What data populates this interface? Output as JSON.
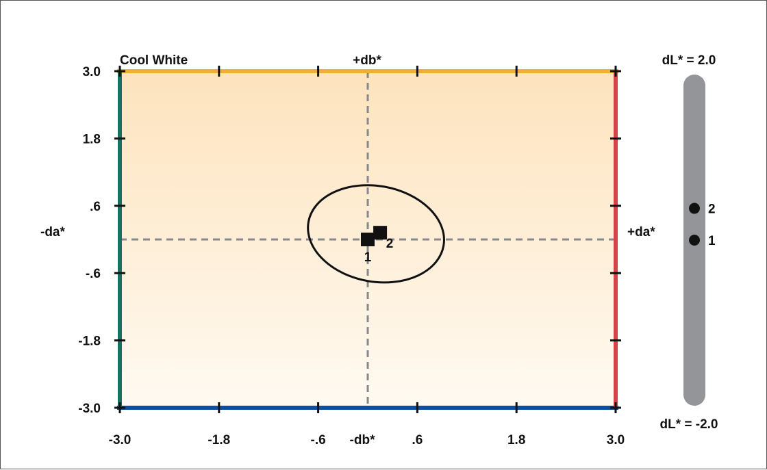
{
  "chart_data": [
    {
      "type": "scatter",
      "title": "Cool White",
      "axis_labels": {
        "top": "+db*",
        "bottom": "-db*",
        "left": "-da*",
        "right": "+da*"
      },
      "xlim": [
        -3.0,
        3.0
      ],
      "ylim": [
        -3.0,
        3.0
      ],
      "x_ticks": [
        "-3.0",
        "-1.8",
        "-.6",
        ".6",
        "1.8",
        "3.0"
      ],
      "y_ticks": [
        "3.0",
        "1.8",
        ".6",
        "-.6",
        "-1.8",
        "-3.0"
      ],
      "tick_values": [
        -3.0,
        -1.8,
        -0.6,
        0.6,
        1.8,
        3.0
      ],
      "points": [
        {
          "label": "1",
          "x": 0.0,
          "y": 0.0
        },
        {
          "label": "2",
          "x": 0.15,
          "y": 0.12
        }
      ],
      "tolerance_ellipse": {
        "center": [
          0.1,
          0.1
        ],
        "semi_major": 0.83,
        "semi_minor": 0.58,
        "rotation_deg": 10
      },
      "grid": false,
      "colors": {
        "top_edge": "#f2ad35",
        "bottom_edge": "#0d4f9e",
        "left_edge": "#16715f",
        "right_edge": "#d9414a",
        "fill_top": "#fde3bd",
        "fill_bottom": "#fffaf2",
        "marker": "#111111",
        "dashed": "#888888"
      }
    },
    {
      "type": "scatter",
      "top_label": "dL* = 2.0",
      "bottom_label": "dL* = -2.0",
      "ylim": [
        -2.0,
        2.0
      ],
      "points": [
        {
          "label": "2",
          "y": 0.43
        },
        {
          "label": "1",
          "y": 0.0
        }
      ],
      "colors": {
        "bar": "#939598",
        "marker": "#111111"
      }
    }
  ]
}
